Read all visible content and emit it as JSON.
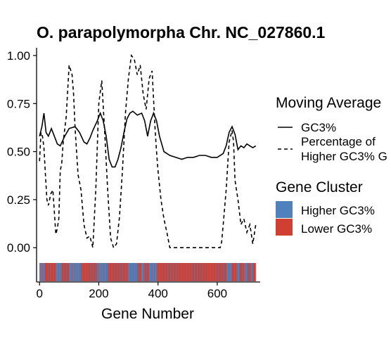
{
  "chart_data": {
    "type": "line",
    "title": "O. parapolymorpha Chr. NC_027860.1",
    "xlabel": "Gene Number",
    "ylabel": "",
    "xlim": [
      -10,
      745
    ],
    "ylim": [
      -0.065,
      1.04
    ],
    "x_ticks": [
      0,
      200,
      400,
      600
    ],
    "y_ticks": [
      0.0,
      0.25,
      0.5,
      0.75,
      1.0
    ],
    "y_tick_labels": [
      "0.00",
      "0.25",
      "0.50",
      "0.75",
      "1.00"
    ],
    "x_tick_labels": [
      "0",
      "200",
      "400",
      "600"
    ],
    "grid": false,
    "legend_position": "right",
    "legend": {
      "moving_average": {
        "title": "Moving Average",
        "entries": [
          {
            "label": "GC3%",
            "style": "solid"
          },
          {
            "label_lines": [
              "Percentage of",
              "Higher GC3% G"
            ],
            "style": "dashed"
          }
        ]
      },
      "gene_cluster": {
        "title": "Gene Cluster",
        "entries": [
          {
            "label": "Higher GC3%",
            "color": "#4f81bd"
          },
          {
            "label": "Lower GC3%",
            "color": "#d13f33"
          }
        ]
      }
    },
    "series": [
      {
        "name": "GC3%",
        "style": "solid",
        "x": [
          0,
          8,
          15,
          22,
          30,
          40,
          50,
          60,
          70,
          85,
          100,
          120,
          135,
          150,
          160,
          170,
          180,
          195,
          205,
          215,
          225,
          235,
          245,
          255,
          265,
          275,
          285,
          295,
          305,
          315,
          330,
          345,
          355,
          365,
          375,
          385,
          395,
          405,
          420,
          440,
          460,
          480,
          500,
          520,
          540,
          560,
          580,
          600,
          620,
          630,
          640,
          650,
          660,
          670,
          680,
          690,
          700,
          710,
          720,
          730
        ],
        "y": [
          0.58,
          0.63,
          0.7,
          0.6,
          0.58,
          0.62,
          0.58,
          0.54,
          0.53,
          0.58,
          0.62,
          0.63,
          0.6,
          0.55,
          0.54,
          0.57,
          0.61,
          0.66,
          0.7,
          0.66,
          0.58,
          0.46,
          0.42,
          0.42,
          0.46,
          0.52,
          0.6,
          0.67,
          0.7,
          0.71,
          0.69,
          0.7,
          0.66,
          0.58,
          0.66,
          0.7,
          0.66,
          0.58,
          0.5,
          0.48,
          0.47,
          0.46,
          0.47,
          0.47,
          0.48,
          0.48,
          0.47,
          0.47,
          0.49,
          0.53,
          0.6,
          0.63,
          0.59,
          0.51,
          0.53,
          0.52,
          0.54,
          0.53,
          0.52,
          0.53
        ]
      },
      {
        "name": "Percentage of Higher GC3% G",
        "style": "dashed",
        "x": [
          0,
          5,
          10,
          15,
          20,
          25,
          30,
          38,
          45,
          55,
          60,
          65,
          70,
          75,
          80,
          90,
          100,
          110,
          115,
          120,
          130,
          140,
          150,
          160,
          170,
          180,
          190,
          200,
          210,
          220,
          230,
          240,
          250,
          260,
          270,
          280,
          290,
          300,
          310,
          320,
          330,
          340,
          350,
          360,
          370,
          380,
          390,
          395,
          400,
          410,
          420,
          430,
          440,
          460,
          480,
          500,
          520,
          540,
          560,
          580,
          600,
          610,
          615,
          620,
          630,
          640,
          650,
          655,
          660,
          670,
          680,
          690,
          700,
          710,
          720,
          730
        ],
        "y": [
          0.45,
          0.6,
          0.58,
          0.52,
          0.38,
          0.25,
          0.22,
          0.28,
          0.3,
          0.07,
          0.1,
          0.15,
          0.4,
          0.44,
          0.55,
          0.68,
          0.95,
          0.9,
          0.8,
          0.62,
          0.38,
          0.3,
          0.12,
          0.05,
          0.06,
          0.0,
          0.3,
          0.75,
          0.87,
          0.6,
          0.3,
          0.05,
          0.0,
          0.02,
          0.16,
          0.4,
          0.7,
          0.88,
          1.0,
          0.98,
          0.9,
          0.95,
          0.8,
          0.72,
          0.88,
          0.92,
          0.62,
          0.5,
          0.4,
          0.25,
          0.15,
          0.08,
          0.0,
          0.0,
          0.0,
          0.0,
          0.0,
          0.0,
          0.0,
          0.0,
          0.0,
          0.0,
          0.03,
          0.12,
          0.3,
          0.55,
          0.61,
          0.55,
          0.35,
          0.25,
          0.12,
          0.15,
          0.08,
          0.12,
          0.02,
          0.12
        ]
      }
    ],
    "gene_cluster_bar": {
      "description_free": true,
      "colors": {
        "higher": "#4f81bd",
        "lower": "#d13f33"
      },
      "higher_segments": [
        [
          0,
          18
        ],
        [
          55,
          75
        ],
        [
          100,
          140
        ],
        [
          195,
          230
        ],
        [
          300,
          330
        ],
        [
          345,
          355
        ],
        [
          370,
          395
        ],
        [
          630,
          650
        ],
        [
          665,
          675
        ],
        [
          690,
          700
        ],
        [
          715,
          720
        ]
      ]
    }
  }
}
